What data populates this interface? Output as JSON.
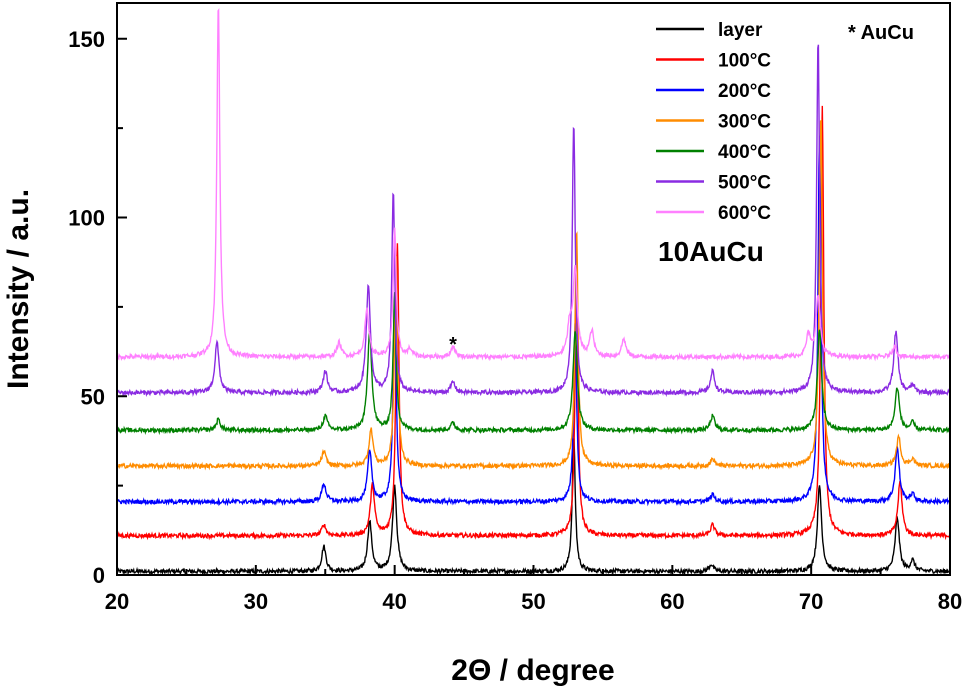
{
  "chart_data": {
    "type": "line",
    "title": "",
    "xlabel": "2Θ / degree",
    "ylabel": "Intensity / a.u.",
    "xlim": [
      20,
      80
    ],
    "ylim": [
      0,
      160
    ],
    "x_ticks": [
      20,
      30,
      40,
      50,
      60,
      70,
      80
    ],
    "y_ticks": [
      0,
      50,
      100,
      150
    ],
    "legend_position": "top-right",
    "grid": false,
    "annotations": {
      "sample": "10AuCu",
      "phase_marker": "* AuCu",
      "peak_marker": "*",
      "peak_marker_position": [
        44.2,
        66
      ]
    },
    "series": [
      {
        "name": "layer",
        "color": "#000000",
        "baseline": 1,
        "peaks": [
          [
            34.9,
            7
          ],
          [
            38.2,
            14
          ],
          [
            40.0,
            24
          ],
          [
            52.9,
            38
          ],
          [
            62.8,
            2
          ],
          [
            70.6,
            24
          ],
          [
            76.2,
            15
          ],
          [
            77.3,
            3
          ]
        ]
      },
      {
        "name": "100°C",
        "color": "#ff0000",
        "baseline": 11,
        "peaks": [
          [
            34.9,
            3
          ],
          [
            38.4,
            14
          ],
          [
            40.2,
            82
          ],
          [
            53.1,
            72
          ],
          [
            62.9,
            3
          ],
          [
            70.8,
            120
          ],
          [
            76.4,
            15
          ]
        ]
      },
      {
        "name": "200°C",
        "color": "#0000ff",
        "baseline": 20.5,
        "peaks": [
          [
            34.9,
            5
          ],
          [
            38.2,
            14
          ],
          [
            40.0,
            58
          ],
          [
            53.0,
            50
          ],
          [
            62.9,
            2
          ],
          [
            70.6,
            102
          ],
          [
            76.2,
            15
          ],
          [
            77.3,
            2
          ]
        ]
      },
      {
        "name": "300°C",
        "color": "#ff8c00",
        "baseline": 30.5,
        "peaks": [
          [
            34.9,
            4
          ],
          [
            38.3,
            10
          ],
          [
            40.1,
            60
          ],
          [
            53.1,
            66
          ],
          [
            62.9,
            2
          ],
          [
            70.7,
            99
          ],
          [
            76.3,
            8
          ],
          [
            77.3,
            2
          ]
        ]
      },
      {
        "name": "400°C",
        "color": "#008000",
        "baseline": 40.5,
        "peaks": [
          [
            27.3,
            3
          ],
          [
            35.0,
            4
          ],
          [
            38.2,
            28
          ],
          [
            40.0,
            38
          ],
          [
            44.2,
            2
          ],
          [
            53.0,
            28
          ],
          [
            62.9,
            4
          ],
          [
            70.6,
            28
          ],
          [
            76.2,
            12
          ],
          [
            77.3,
            2
          ]
        ]
      },
      {
        "name": "500°C",
        "color": "#8a2be2",
        "baseline": 51,
        "peaks": [
          [
            27.2,
            14
          ],
          [
            35.0,
            6
          ],
          [
            38.1,
            30
          ],
          [
            39.9,
            56
          ],
          [
            44.2,
            3
          ],
          [
            52.9,
            76
          ],
          [
            62.9,
            6
          ],
          [
            70.5,
            99
          ],
          [
            76.1,
            17
          ],
          [
            77.3,
            2
          ]
        ]
      },
      {
        "name": "600°C",
        "color": "#ff80ff",
        "baseline": 61,
        "peaks": [
          [
            27.3,
            99
          ],
          [
            36.0,
            4
          ],
          [
            38.0,
            13
          ],
          [
            40.0,
            36
          ],
          [
            41.1,
            2
          ],
          [
            44.2,
            3
          ],
          [
            52.6,
            8
          ],
          [
            53.0,
            24
          ],
          [
            54.2,
            7
          ],
          [
            56.5,
            5
          ],
          [
            69.8,
            6
          ],
          [
            70.5,
            17
          ],
          [
            76.0,
            3
          ]
        ]
      }
    ]
  }
}
